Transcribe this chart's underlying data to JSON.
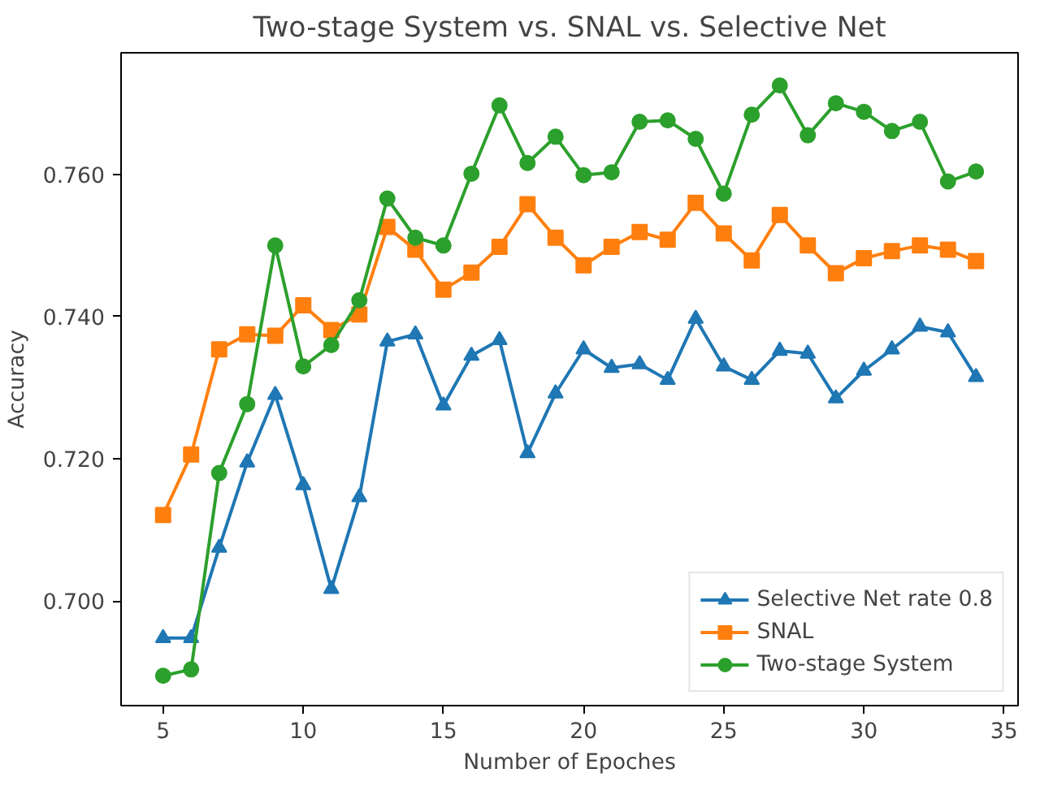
{
  "chart_data": {
    "type": "line",
    "title": "Two-stage System vs. SNAL vs. Selective Net",
    "xlabel": "Number of Epoches",
    "ylabel": "Accuracy",
    "x": [
      5,
      6,
      7,
      8,
      9,
      10,
      11,
      12,
      13,
      14,
      15,
      16,
      17,
      18,
      19,
      20,
      21,
      22,
      23,
      24,
      25,
      26,
      27,
      28,
      29,
      30,
      31,
      32,
      33,
      34
    ],
    "xlim": [
      3.5,
      35.5
    ],
    "xticks": [
      5,
      10,
      15,
      20,
      25,
      30,
      35
    ],
    "ylim": [
      0.6853,
      0.7771
    ],
    "yticks": [
      {
        "value": 0.7,
        "label": "0.700"
      },
      {
        "value": 0.72,
        "label": "0.720"
      },
      {
        "value": 0.74,
        "label": "0.740"
      },
      {
        "value": 0.76,
        "label": "0.760"
      }
    ],
    "grid": false,
    "legend": "bottom right",
    "line_style": "solid",
    "series": [
      {
        "name": "Selective Net rate 0.8",
        "color": "#1f77b4",
        "marker": "triangle",
        "values": [
          0.6948,
          0.6948,
          0.7075,
          0.7195,
          0.729,
          0.7163,
          0.7017,
          0.7146,
          0.7365,
          0.7375,
          0.7275,
          0.7345,
          0.7367,
          0.7208,
          0.7292,
          0.7354,
          0.7328,
          0.7333,
          0.7311,
          0.7397,
          0.733,
          0.7311,
          0.7352,
          0.7348,
          0.7285,
          0.7324,
          0.7354,
          0.7386,
          0.7378,
          0.7315
        ]
      },
      {
        "name": "SNAL",
        "color": "#ff7f0e",
        "marker": "square",
        "values": [
          0.7121,
          0.7206,
          0.7354,
          0.7375,
          0.7373,
          0.7416,
          0.7381,
          0.7403,
          0.7526,
          0.7494,
          0.7438,
          0.7462,
          0.7498,
          0.7558,
          0.7511,
          0.7472,
          0.7498,
          0.7519,
          0.7508,
          0.756,
          0.7517,
          0.7479,
          0.7543,
          0.75,
          0.7461,
          0.7482,
          0.7492,
          0.75,
          0.7494,
          0.7478
        ]
      },
      {
        "name": "Two-stage System",
        "color": "#2ca02c",
        "marker": "circle",
        "values": [
          0.6895,
          0.6904,
          0.718,
          0.7277,
          0.75,
          0.733,
          0.736,
          0.7423,
          0.7566,
          0.7511,
          0.75,
          0.7601,
          0.7697,
          0.7616,
          0.7653,
          0.7599,
          0.7603,
          0.7674,
          0.7676,
          0.765,
          0.7573,
          0.7684,
          0.7725,
          0.7655,
          0.77,
          0.7688,
          0.7661,
          0.7674,
          0.759,
          0.7604
        ]
      }
    ]
  }
}
